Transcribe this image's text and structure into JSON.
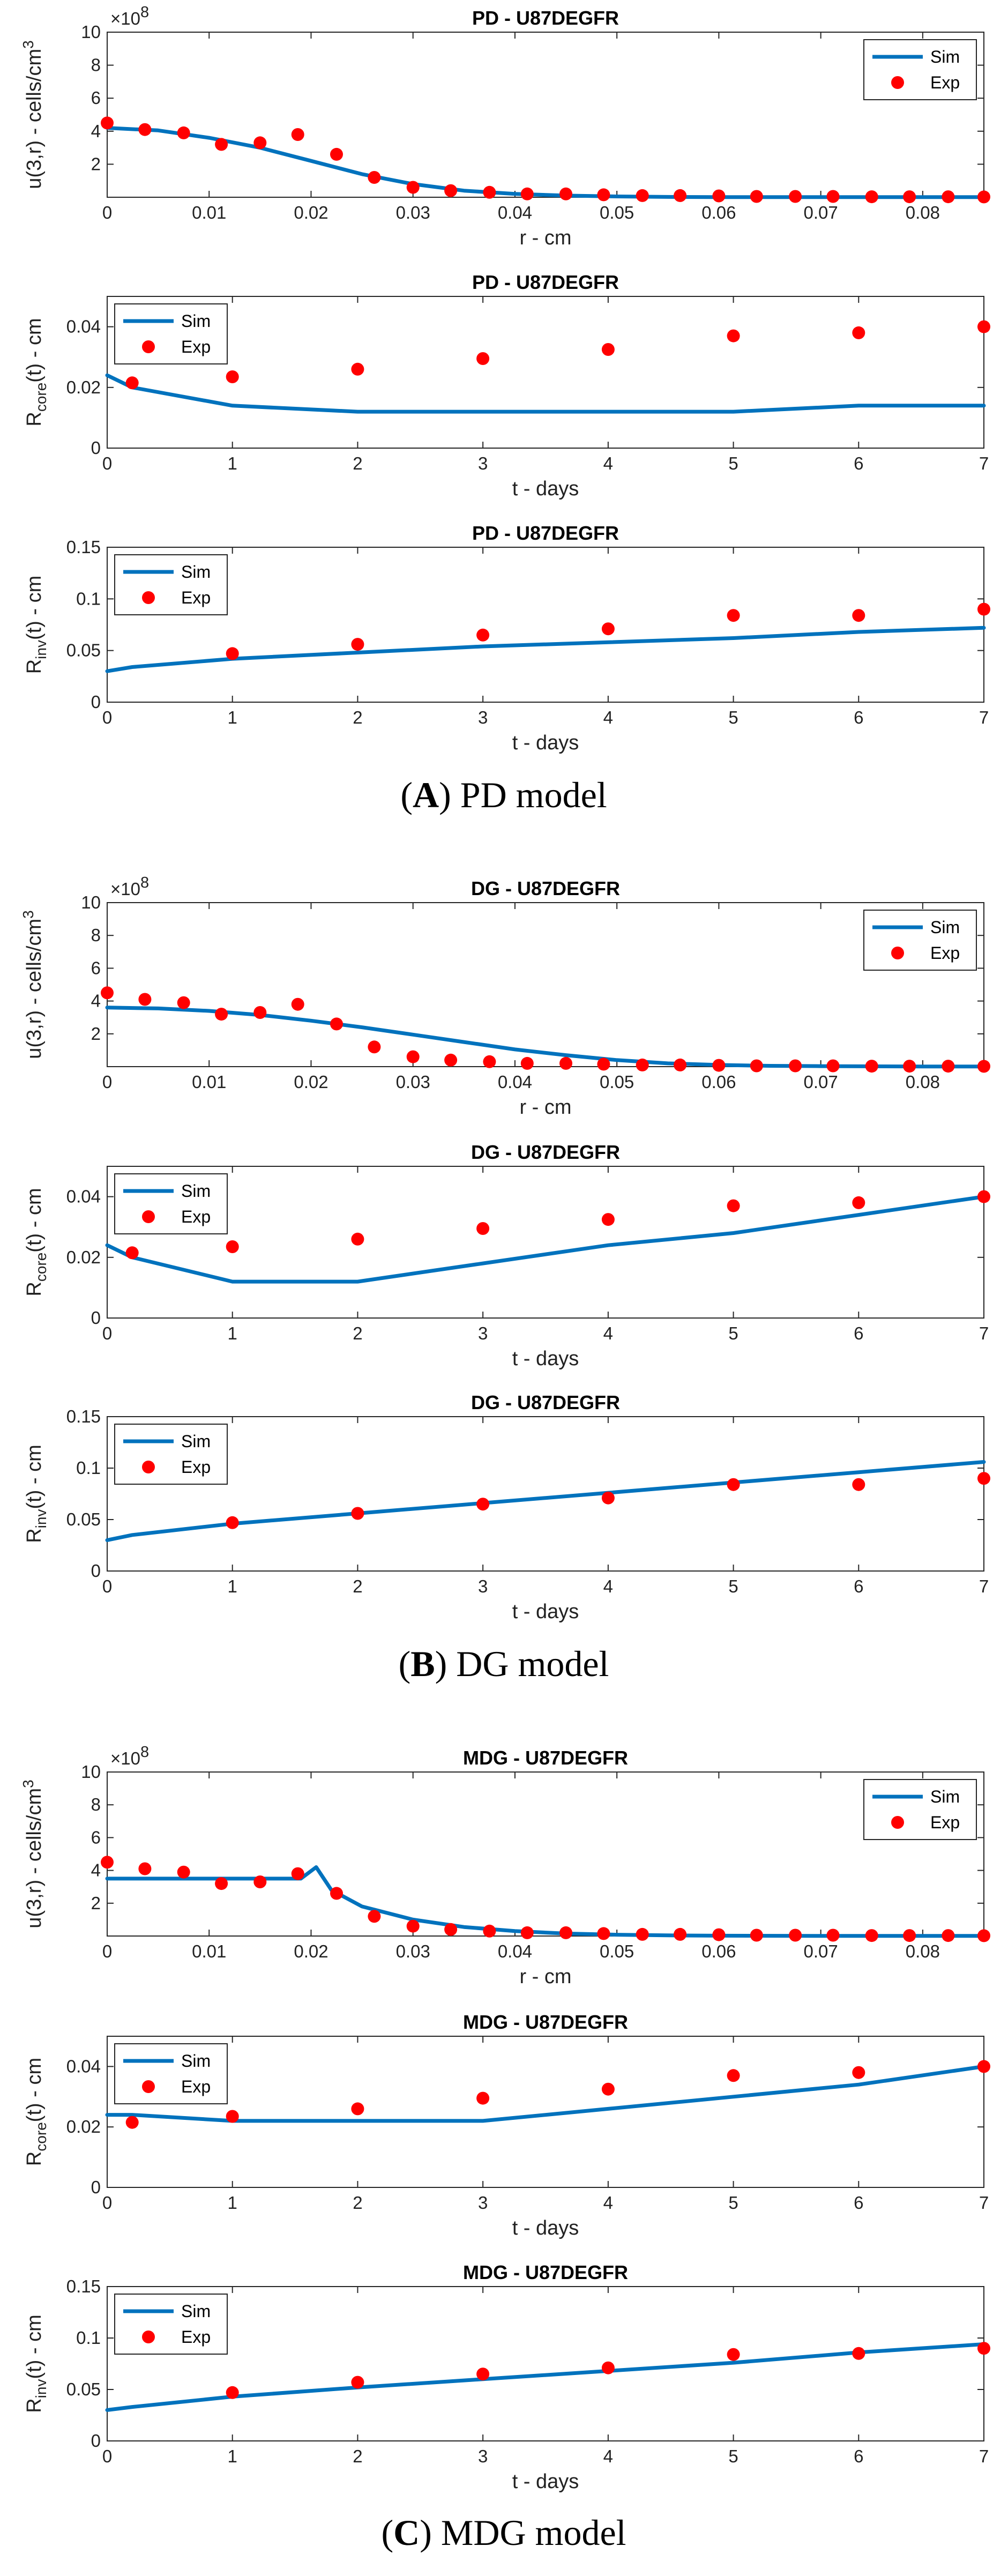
{
  "legend": {
    "sim": "Sim",
    "exp": "Exp"
  },
  "colors": {
    "sim": "#0072BD",
    "exp": "#FF0000"
  },
  "captions": [
    {
      "letter": "A",
      "text": " PD model"
    },
    {
      "letter": "B",
      "text": " DG model"
    },
    {
      "letter": "C",
      "text": " MDG model"
    }
  ],
  "chart_data": [
    {
      "type": "line",
      "title": "PD - U87DEGFR",
      "xlabel": "r - cm",
      "ylabel": "u(3,r) - cells/cm^3",
      "ylabel_kind": "u",
      "exponent": "10^8",
      "xlim": [
        0,
        0.086
      ],
      "ylim": [
        0,
        10
      ],
      "xticks": [
        0,
        0.01,
        0.02,
        0.03,
        0.04,
        0.05,
        0.06,
        0.07,
        0.08
      ],
      "xtick_labels": [
        "0",
        "0.01",
        "0.02",
        "0.03",
        "0.04",
        "0.05",
        "0.06",
        "0.07",
        "0.08"
      ],
      "yticks": [
        2,
        4,
        6,
        8,
        10
      ],
      "ytick_labels": [
        "2",
        "4",
        "6",
        "8",
        "10"
      ],
      "legend_position": "top-right",
      "series": [
        {
          "name": "Sim",
          "kind": "line",
          "x": [
            0,
            0.005,
            0.01,
            0.015,
            0.02,
            0.025,
            0.03,
            0.035,
            0.04,
            0.045,
            0.05,
            0.055,
            0.06,
            0.07,
            0.08,
            0.086
          ],
          "y": [
            4.2,
            4.05,
            3.6,
            3.0,
            2.2,
            1.4,
            0.8,
            0.4,
            0.2,
            0.1,
            0.05,
            0.02,
            0.01,
            0.01,
            0.01,
            0.01
          ]
        },
        {
          "name": "Exp",
          "kind": "scatter",
          "x": [
            0,
            0.0037,
            0.0075,
            0.0112,
            0.015,
            0.0187,
            0.0225,
            0.0262,
            0.03,
            0.0337,
            0.0375,
            0.0412,
            0.045,
            0.0487,
            0.0525,
            0.0562,
            0.06,
            0.0637,
            0.0675,
            0.0712,
            0.075,
            0.0787,
            0.0825,
            0.086
          ],
          "y": [
            4.5,
            4.1,
            3.9,
            3.2,
            3.3,
            3.8,
            2.6,
            1.2,
            0.6,
            0.4,
            0.3,
            0.2,
            0.2,
            0.15,
            0.1,
            0.1,
            0.08,
            0.05,
            0.05,
            0.05,
            0.03,
            0.03,
            0.03,
            0.02
          ]
        }
      ]
    },
    {
      "type": "line",
      "title": "PD - U87DEGFR",
      "xlabel": "t - days",
      "ylabel": "R_core(t) - cm",
      "ylabel_kind": "core",
      "xlim": [
        0,
        7
      ],
      "ylim": [
        0,
        0.05
      ],
      "xticks": [
        0,
        1,
        2,
        3,
        4,
        5,
        6,
        7
      ],
      "xtick_labels": [
        "0",
        "1",
        "2",
        "3",
        "4",
        "5",
        "6",
        "7"
      ],
      "yticks": [
        0,
        0.02,
        0.04
      ],
      "ytick_labels": [
        "0",
        "0.02",
        "0.04"
      ],
      "legend_position": "top-left",
      "series": [
        {
          "name": "Sim",
          "kind": "line",
          "x": [
            0,
            0.2,
            1,
            2,
            3,
            4,
            5,
            6,
            7
          ],
          "y": [
            0.024,
            0.02,
            0.014,
            0.012,
            0.012,
            0.012,
            0.012,
            0.014,
            0.014
          ]
        },
        {
          "name": "Exp",
          "kind": "scatter",
          "x": [
            0.2,
            1,
            2,
            3,
            4,
            5,
            6,
            7
          ],
          "y": [
            0.0215,
            0.0235,
            0.026,
            0.0295,
            0.0325,
            0.037,
            0.038,
            0.04
          ]
        }
      ]
    },
    {
      "type": "line",
      "title": "PD - U87DEGFR",
      "xlabel": "t - days",
      "ylabel": "R_inv(t) - cm",
      "ylabel_kind": "inv",
      "xlim": [
        0,
        7
      ],
      "ylim": [
        0,
        0.15
      ],
      "xticks": [
        0,
        1,
        2,
        3,
        4,
        5,
        6,
        7
      ],
      "xtick_labels": [
        "0",
        "1",
        "2",
        "3",
        "4",
        "5",
        "6",
        "7"
      ],
      "yticks": [
        0,
        0.05,
        0.1,
        0.15
      ],
      "ytick_labels": [
        "0",
        "0.05",
        "0.1",
        "0.15"
      ],
      "legend_position": "top-left",
      "series": [
        {
          "name": "Sim",
          "kind": "line",
          "x": [
            0,
            0.2,
            1,
            2,
            3,
            4,
            5,
            6,
            7
          ],
          "y": [
            0.03,
            0.034,
            0.042,
            0.048,
            0.054,
            0.058,
            0.062,
            0.068,
            0.072
          ]
        },
        {
          "name": "Exp",
          "kind": "scatter",
          "x": [
            1,
            2,
            3,
            4,
            5,
            6,
            7
          ],
          "y": [
            0.047,
            0.056,
            0.065,
            0.071,
            0.084,
            0.084,
            0.09
          ]
        }
      ]
    },
    {
      "type": "line",
      "title": "DG - U87DEGFR",
      "xlabel": "r - cm",
      "ylabel": "u(3,r) - cells/cm^3",
      "ylabel_kind": "u",
      "exponent": "10^8",
      "xlim": [
        0,
        0.086
      ],
      "ylim": [
        0,
        10
      ],
      "xticks": [
        0,
        0.01,
        0.02,
        0.03,
        0.04,
        0.05,
        0.06,
        0.07,
        0.08
      ],
      "xtick_labels": [
        "0",
        "0.01",
        "0.02",
        "0.03",
        "0.04",
        "0.05",
        "0.06",
        "0.07",
        "0.08"
      ],
      "yticks": [
        2,
        4,
        6,
        8,
        10
      ],
      "ytick_labels": [
        "2",
        "4",
        "6",
        "8",
        "10"
      ],
      "legend_position": "top-right",
      "series": [
        {
          "name": "Sim",
          "kind": "line",
          "x": [
            0,
            0.005,
            0.01,
            0.015,
            0.02,
            0.025,
            0.03,
            0.035,
            0.04,
            0.045,
            0.05,
            0.055,
            0.06,
            0.065,
            0.07,
            0.08,
            0.086
          ],
          "y": [
            3.6,
            3.55,
            3.4,
            3.15,
            2.8,
            2.4,
            1.95,
            1.5,
            1.05,
            0.7,
            0.4,
            0.2,
            0.1,
            0.05,
            0.03,
            0.01,
            0.01
          ]
        },
        {
          "name": "Exp",
          "kind": "scatter",
          "x": [
            0,
            0.0037,
            0.0075,
            0.0112,
            0.015,
            0.0187,
            0.0225,
            0.0262,
            0.03,
            0.0337,
            0.0375,
            0.0412,
            0.045,
            0.0487,
            0.0525,
            0.0562,
            0.06,
            0.0637,
            0.0675,
            0.0712,
            0.075,
            0.0787,
            0.0825,
            0.086
          ],
          "y": [
            4.5,
            4.1,
            3.9,
            3.2,
            3.3,
            3.8,
            2.6,
            1.2,
            0.6,
            0.4,
            0.3,
            0.2,
            0.2,
            0.15,
            0.1,
            0.1,
            0.08,
            0.05,
            0.05,
            0.05,
            0.03,
            0.03,
            0.03,
            0.02
          ]
        }
      ]
    },
    {
      "type": "line",
      "title": "DG - U87DEGFR",
      "xlabel": "t - days",
      "ylabel": "R_core(t) - cm",
      "ylabel_kind": "core",
      "xlim": [
        0,
        7
      ],
      "ylim": [
        0,
        0.05
      ],
      "xticks": [
        0,
        1,
        2,
        3,
        4,
        5,
        6,
        7
      ],
      "xtick_labels": [
        "0",
        "1",
        "2",
        "3",
        "4",
        "5",
        "6",
        "7"
      ],
      "yticks": [
        0,
        0.02,
        0.04
      ],
      "ytick_labels": [
        "0",
        "0.02",
        "0.04"
      ],
      "legend_position": "top-left",
      "series": [
        {
          "name": "Sim",
          "kind": "line",
          "x": [
            0,
            0.2,
            1,
            2,
            3,
            4,
            5,
            6,
            7
          ],
          "y": [
            0.024,
            0.02,
            0.012,
            0.012,
            0.018,
            0.024,
            0.028,
            0.034,
            0.04
          ]
        },
        {
          "name": "Exp",
          "kind": "scatter",
          "x": [
            0.2,
            1,
            2,
            3,
            4,
            5,
            6,
            7
          ],
          "y": [
            0.0215,
            0.0235,
            0.026,
            0.0295,
            0.0325,
            0.037,
            0.038,
            0.04
          ]
        }
      ]
    },
    {
      "type": "line",
      "title": "DG - U87DEGFR",
      "xlabel": "t - days",
      "ylabel": "R_inv(t) - cm",
      "ylabel_kind": "inv",
      "xlim": [
        0,
        7
      ],
      "ylim": [
        0,
        0.15
      ],
      "xticks": [
        0,
        1,
        2,
        3,
        4,
        5,
        6,
        7
      ],
      "xtick_labels": [
        "0",
        "1",
        "2",
        "3",
        "4",
        "5",
        "6",
        "7"
      ],
      "yticks": [
        0,
        0.05,
        0.1,
        0.15
      ],
      "ytick_labels": [
        "0",
        "0.05",
        "0.1",
        "0.15"
      ],
      "legend_position": "top-left",
      "series": [
        {
          "name": "Sim",
          "kind": "line",
          "x": [
            0,
            0.2,
            1,
            2,
            3,
            4,
            5,
            6,
            7
          ],
          "y": [
            0.03,
            0.035,
            0.046,
            0.056,
            0.066,
            0.076,
            0.086,
            0.096,
            0.106
          ]
        },
        {
          "name": "Exp",
          "kind": "scatter",
          "x": [
            1,
            2,
            3,
            4,
            5,
            6,
            7
          ],
          "y": [
            0.047,
            0.056,
            0.065,
            0.071,
            0.084,
            0.084,
            0.09
          ]
        }
      ]
    },
    {
      "type": "line",
      "title": "MDG - U87DEGFR",
      "xlabel": "r - cm",
      "ylabel": "u(3,r) - cells/cm^3",
      "ylabel_kind": "u",
      "exponent": "10^8",
      "xlim": [
        0,
        0.086
      ],
      "ylim": [
        0,
        10
      ],
      "xticks": [
        0,
        0.01,
        0.02,
        0.03,
        0.04,
        0.05,
        0.06,
        0.07,
        0.08
      ],
      "xtick_labels": [
        "0",
        "0.01",
        "0.02",
        "0.03",
        "0.04",
        "0.05",
        "0.06",
        "0.07",
        "0.08"
      ],
      "yticks": [
        2,
        4,
        6,
        8,
        10
      ],
      "ytick_labels": [
        "2",
        "4",
        "6",
        "8",
        "10"
      ],
      "legend_position": "top-right",
      "series": [
        {
          "name": "Sim",
          "kind": "line",
          "x": [
            0,
            0.01,
            0.019,
            0.0205,
            0.022,
            0.025,
            0.03,
            0.035,
            0.04,
            0.045,
            0.05,
            0.055,
            0.06,
            0.07,
            0.08,
            0.086
          ],
          "y": [
            3.5,
            3.5,
            3.5,
            4.2,
            2.8,
            1.8,
            1.0,
            0.55,
            0.3,
            0.15,
            0.08,
            0.04,
            0.02,
            0.01,
            0.01,
            0.01
          ]
        },
        {
          "name": "Exp",
          "kind": "scatter",
          "x": [
            0,
            0.0037,
            0.0075,
            0.0112,
            0.015,
            0.0187,
            0.0225,
            0.0262,
            0.03,
            0.0337,
            0.0375,
            0.0412,
            0.045,
            0.0487,
            0.0525,
            0.0562,
            0.06,
            0.0637,
            0.0675,
            0.0712,
            0.075,
            0.0787,
            0.0825,
            0.086
          ],
          "y": [
            4.5,
            4.1,
            3.9,
            3.2,
            3.3,
            3.8,
            2.6,
            1.2,
            0.6,
            0.4,
            0.3,
            0.2,
            0.2,
            0.15,
            0.1,
            0.1,
            0.08,
            0.05,
            0.05,
            0.05,
            0.03,
            0.03,
            0.03,
            0.02
          ]
        }
      ]
    },
    {
      "type": "line",
      "title": "MDG - U87DEGFR",
      "xlabel": "t - days",
      "ylabel": "R_core(t) - cm",
      "ylabel_kind": "core",
      "xlim": [
        0,
        7
      ],
      "ylim": [
        0,
        0.05
      ],
      "xticks": [
        0,
        1,
        2,
        3,
        4,
        5,
        6,
        7
      ],
      "xtick_labels": [
        "0",
        "1",
        "2",
        "3",
        "4",
        "5",
        "6",
        "7"
      ],
      "yticks": [
        0,
        0.02,
        0.04
      ],
      "ytick_labels": [
        "0",
        "0.02",
        "0.04"
      ],
      "legend_position": "top-left",
      "series": [
        {
          "name": "Sim",
          "kind": "line",
          "x": [
            0,
            0.2,
            1,
            2,
            3,
            4,
            5,
            6,
            7
          ],
          "y": [
            0.024,
            0.024,
            0.022,
            0.022,
            0.022,
            0.026,
            0.03,
            0.034,
            0.04
          ]
        },
        {
          "name": "Exp",
          "kind": "scatter",
          "x": [
            0.2,
            1,
            2,
            3,
            4,
            5,
            6,
            7
          ],
          "y": [
            0.0215,
            0.0235,
            0.026,
            0.0295,
            0.0325,
            0.037,
            0.038,
            0.04
          ]
        }
      ]
    },
    {
      "type": "line",
      "title": "MDG - U87DEGFR",
      "xlabel": "t - days",
      "ylabel": "R_inv(t) - cm",
      "ylabel_kind": "inv",
      "xlim": [
        0,
        7
      ],
      "ylim": [
        0,
        0.15
      ],
      "xticks": [
        0,
        1,
        2,
        3,
        4,
        5,
        6,
        7
      ],
      "xtick_labels": [
        "0",
        "1",
        "2",
        "3",
        "4",
        "5",
        "6",
        "7"
      ],
      "yticks": [
        0,
        0.05,
        0.1,
        0.15
      ],
      "ytick_labels": [
        "0",
        "0.05",
        "0.1",
        "0.15"
      ],
      "legend_position": "top-left",
      "series": [
        {
          "name": "Sim",
          "kind": "line",
          "x": [
            0,
            0.2,
            1,
            2,
            3,
            4,
            5,
            6,
            7
          ],
          "y": [
            0.03,
            0.033,
            0.043,
            0.052,
            0.06,
            0.068,
            0.076,
            0.086,
            0.094
          ]
        },
        {
          "name": "Exp",
          "kind": "scatter",
          "x": [
            1,
            2,
            3,
            4,
            5,
            6,
            7
          ],
          "y": [
            0.047,
            0.057,
            0.065,
            0.071,
            0.084,
            0.085,
            0.09
          ]
        }
      ]
    }
  ]
}
